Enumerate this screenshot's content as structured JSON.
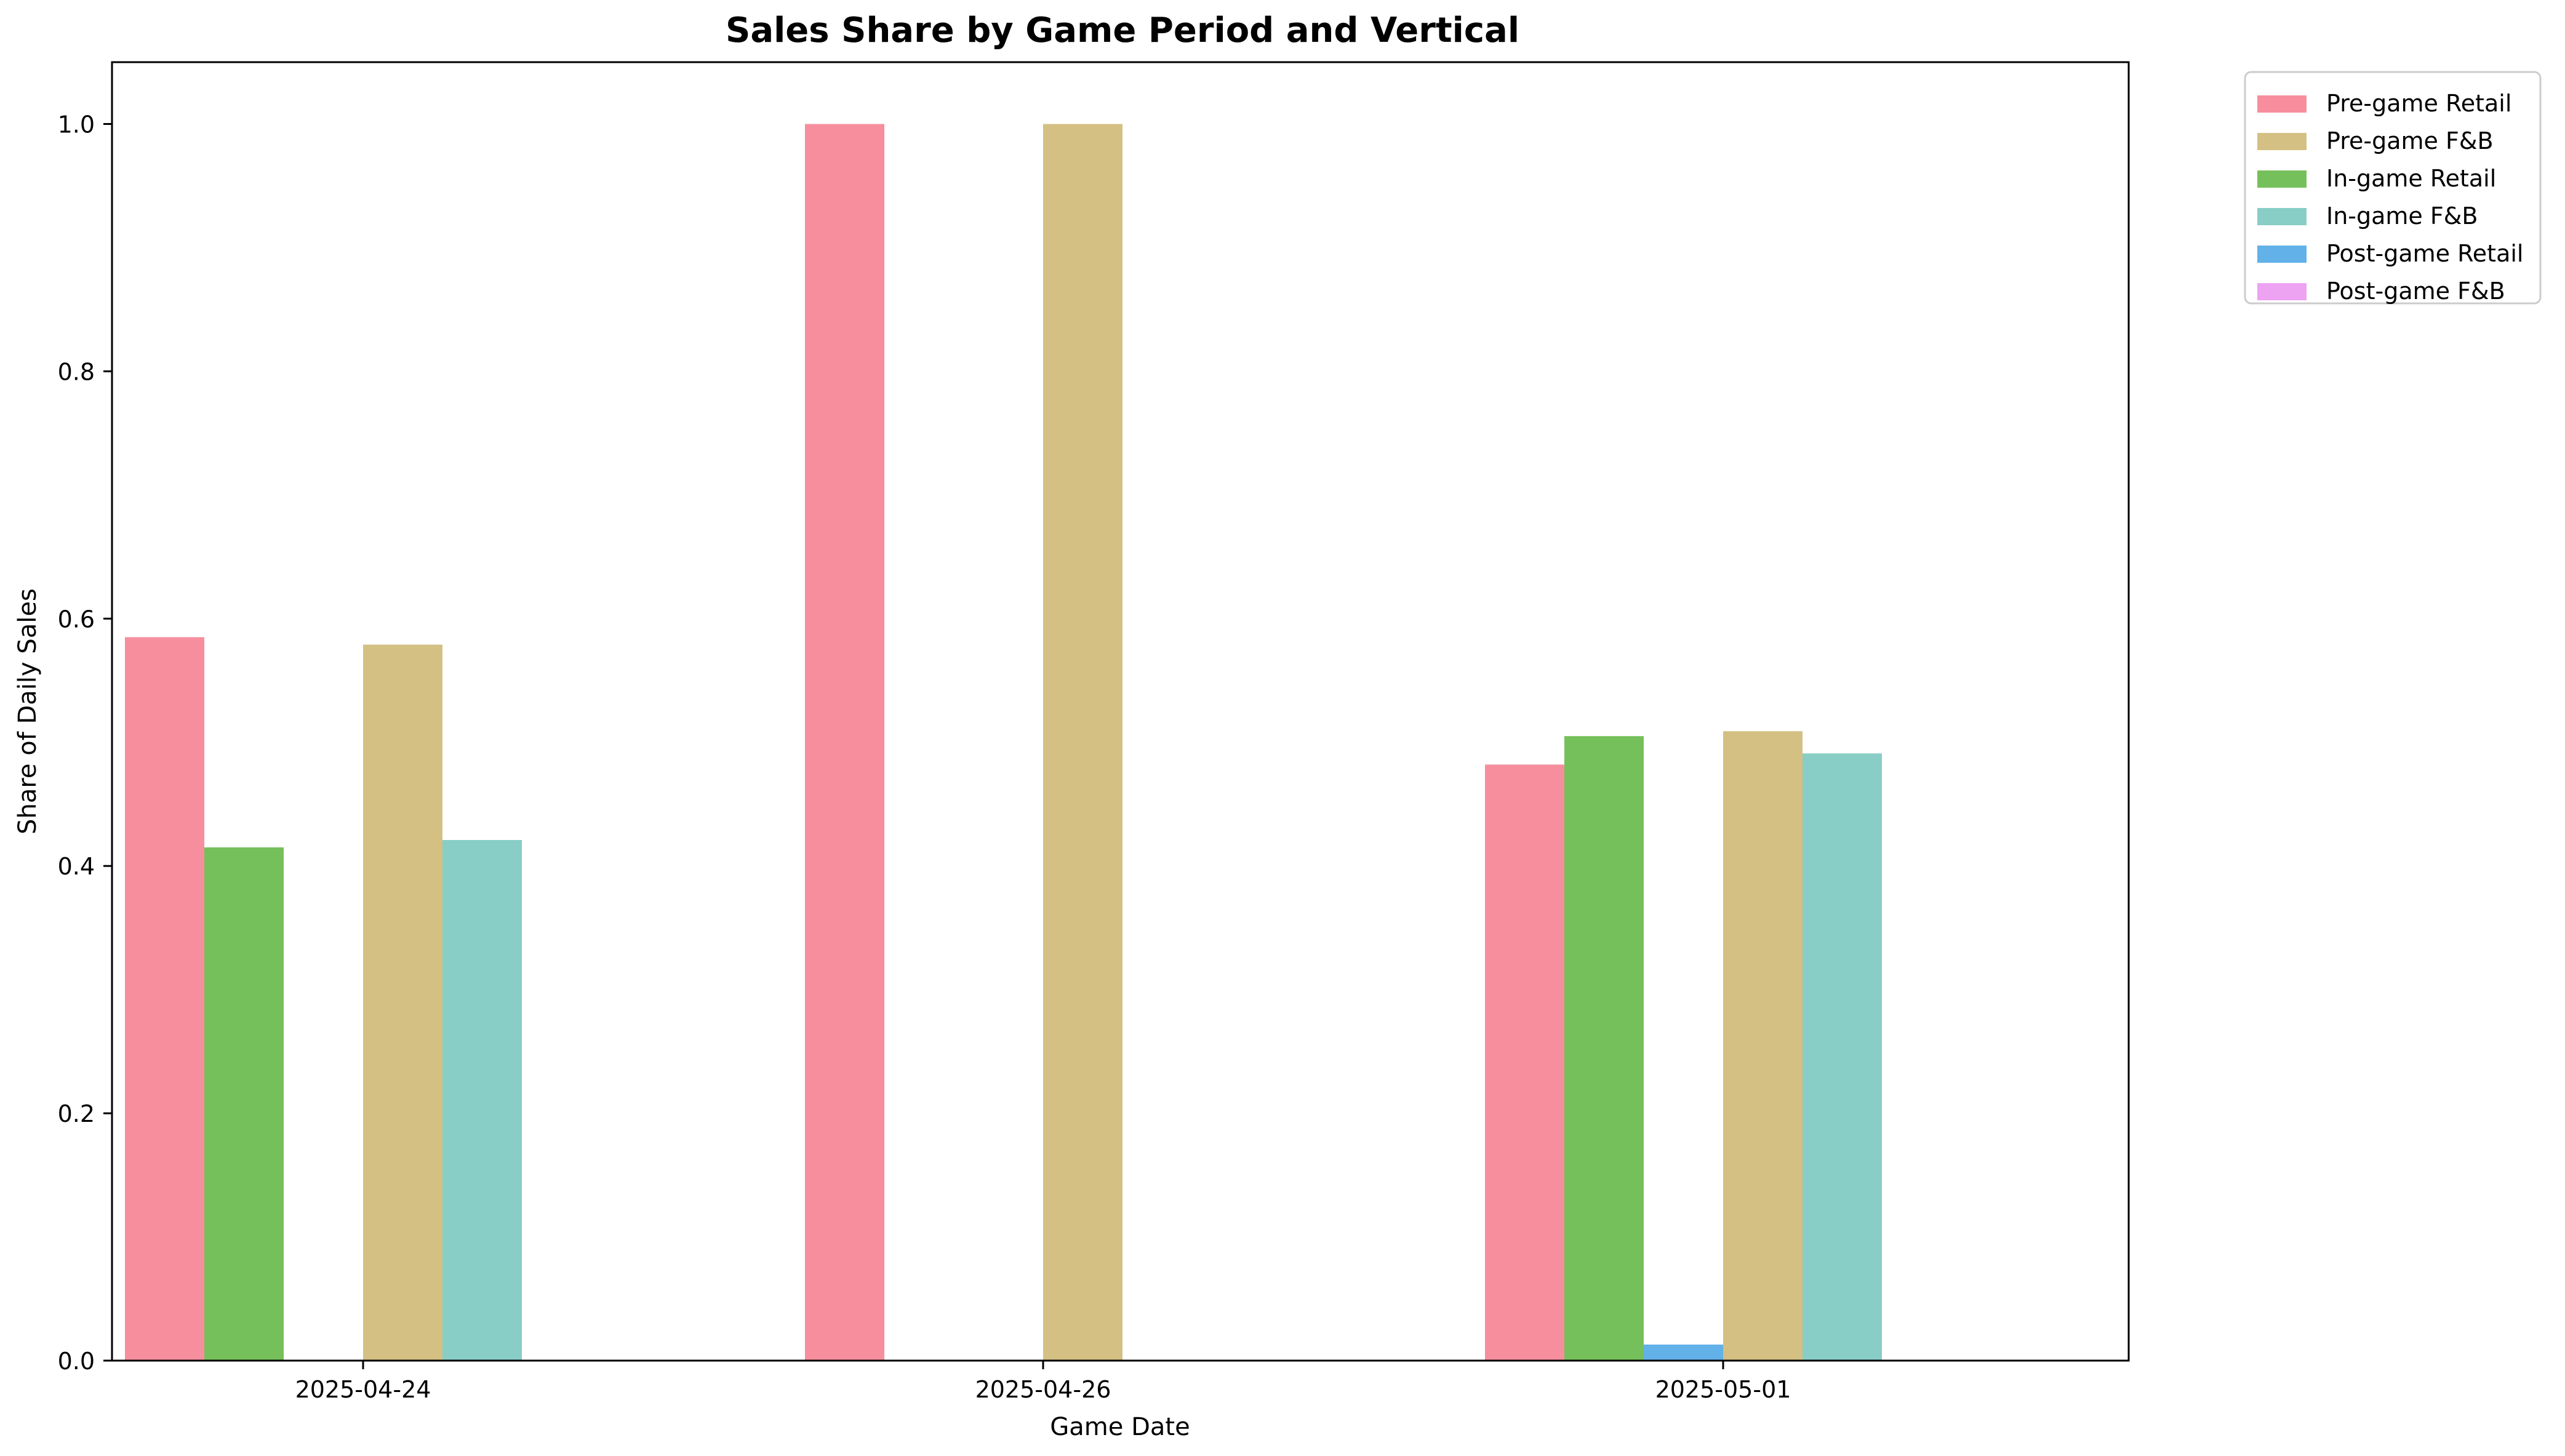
{
  "chart_data": {
    "type": "bar",
    "title": "Sales Share by Game Period and Vertical",
    "xlabel": "Game Date",
    "ylabel": "Share of Daily Sales",
    "categories": [
      "2025-04-24",
      "2025-04-26",
      "2025-05-01"
    ],
    "ylim": [
      0,
      1.05
    ],
    "yticks": [
      0.0,
      0.2,
      0.4,
      0.6,
      0.8,
      1.0
    ],
    "ytick_labels": [
      "0.0",
      "0.2",
      "0.4",
      "0.6",
      "0.8",
      "1.0"
    ],
    "grid": false,
    "legend_position": "outside top-right",
    "series": [
      {
        "name": "Pre-game Retail",
        "color": "#f68e9e",
        "values": [
          0.585,
          1.0,
          0.482
        ]
      },
      {
        "name": "In-game Retail",
        "color": "#75c05a",
        "values": [
          0.415,
          0.0,
          0.505
        ]
      },
      {
        "name": "Post-game Retail",
        "color": "#62b1e9",
        "values": [
          0.0,
          0.0,
          0.013
        ]
      },
      {
        "name": "Pre-game F&B",
        "color": "#d4c083",
        "values": [
          0.579,
          1.0,
          0.509
        ]
      },
      {
        "name": "In-game F&B",
        "color": "#88cdc6",
        "values": [
          0.421,
          0.0,
          0.491
        ]
      },
      {
        "name": "Post-game F&B",
        "color": "#eda3f2",
        "values": [
          0.0,
          0.0,
          0.0
        ]
      }
    ],
    "legend_order": [
      "Pre-game Retail",
      "Pre-game F&B",
      "In-game Retail",
      "In-game F&B",
      "Post-game Retail",
      "Post-game F&B"
    ]
  }
}
